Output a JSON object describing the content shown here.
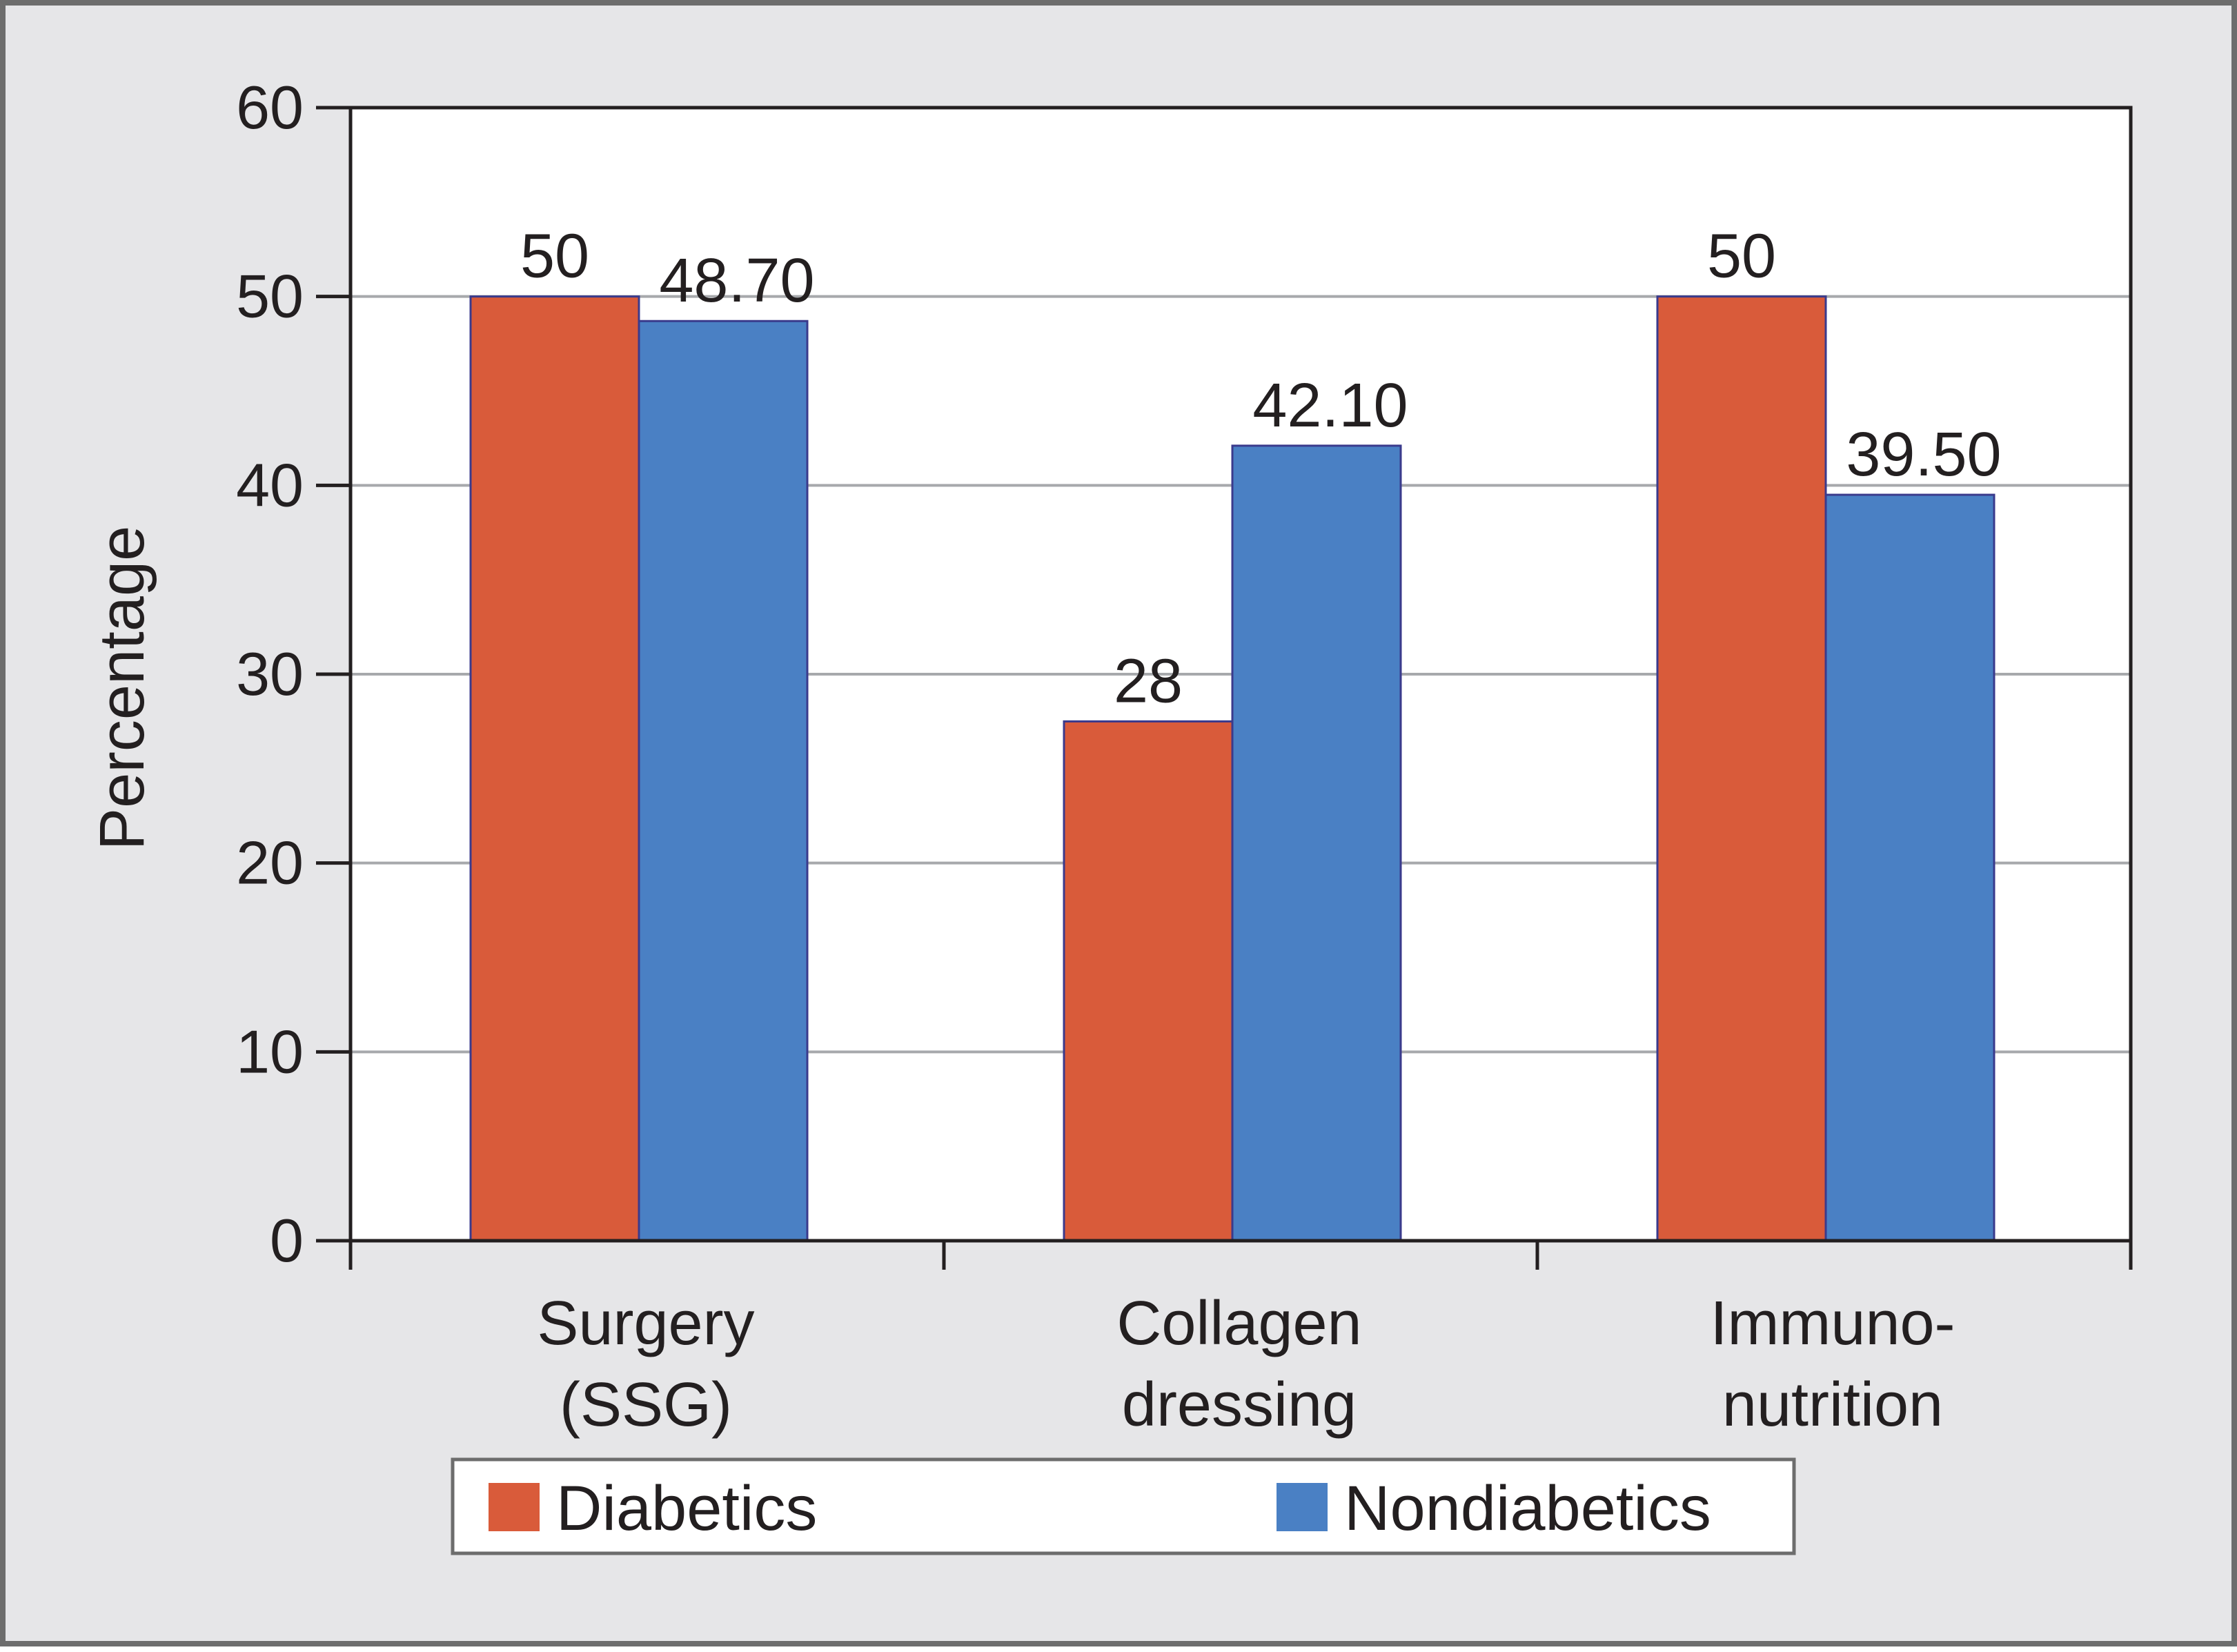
{
  "chart_data": {
    "type": "bar",
    "title": "",
    "xlabel": "",
    "ylabel": "Percentage",
    "ylim": [
      0,
      60
    ],
    "yticks": [
      0,
      10,
      20,
      30,
      40,
      50,
      60
    ],
    "grid": true,
    "legend_position": "bottom",
    "categories": [
      [
        "Surgery",
        "(SSG)"
      ],
      [
        "Collagen",
        "dressing"
      ],
      [
        "Immuno-",
        "nutrition"
      ]
    ],
    "series": [
      {
        "name": "Diabetics",
        "color": "#d95b3a",
        "values": [
          50,
          27.5,
          50
        ],
        "labels": [
          "50",
          "28",
          "50"
        ]
      },
      {
        "name": "Nondiabetics",
        "color": "#4a80c4",
        "values": [
          48.7,
          42.1,
          39.5
        ],
        "labels": [
          "48.70",
          "42.10",
          "39.50"
        ]
      }
    ]
  }
}
